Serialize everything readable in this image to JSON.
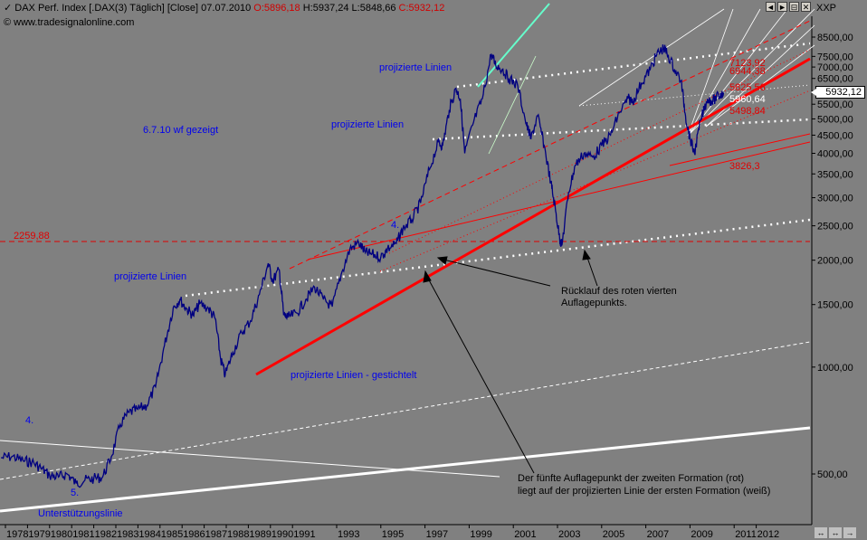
{
  "header": {
    "instrument": "DAX Perf. Index [.DAX(3)",
    "interval": "Täglich]",
    "mode": "[Close]",
    "date": "07.07.2010",
    "open": "O:5896,18",
    "high": "H:5937,24",
    "low": "L:5848,66",
    "close": "C:5932,12",
    "source": "www.tradesignalonline.com",
    "scale_label": "XXP",
    "current_price": "5932,12"
  },
  "window_controls": [
    "◄",
    "►",
    "⊟",
    "✕"
  ],
  "nav_controls": [
    "↔",
    "↔",
    "→"
  ],
  "annotations": {
    "proj1": "projizierte Linien",
    "proj2": "projizierte Linien",
    "proj3": "projizierte Linien",
    "proj_dashed": "projizierte Linien - gestichtelt",
    "shown": "6.7.10 wf gezeigt",
    "wave4_top": "4.",
    "wave4_left": "4.",
    "wave5_left": "5.",
    "support": "Unterstützungslinie",
    "retrace_1": "Rücklauf des roten vierten",
    "retrace_2": "Auflagepunkts.",
    "fifth_1": "Der fünfte Auflagepunkt der zweiten Formation (rot)",
    "fifth_2": "liegt auf der projizierten Linie der ersten Formation (weiß)",
    "level_2259": "2259,88",
    "level_3826": "3826,3",
    "level_5498": "5498,84",
    "level_5960": "5960,64",
    "level_5825": "5825,56",
    "level_6944": "6944,38",
    "level_7123": "7123,92"
  },
  "chart_data": {
    "type": "line",
    "title": "DAX Perf. Index",
    "y_scale": "log",
    "ylim": [
      330,
      9000
    ],
    "xlim": [
      1978,
      2013.4
    ],
    "y_ticks": [
      "8500,00",
      "7500,00",
      "7000,00",
      "6500,00",
      "6000,00",
      "5500,00",
      "5000,00",
      "4500,00",
      "4000,00",
      "3500,00",
      "3000,00",
      "2500,00",
      "2000,00",
      "1500,00",
      "1000,00",
      "500,00"
    ],
    "y_tick_values": [
      8500,
      7500,
      7000,
      6500,
      6000,
      5500,
      5000,
      4500,
      4000,
      3500,
      3000,
      2500,
      2000,
      1500,
      1000,
      500
    ],
    "x_ticks": [
      "1978",
      "1979",
      "1980",
      "1981",
      "1982",
      "1983",
      "1984",
      "1985",
      "1986",
      "1987",
      "1988",
      "1989",
      "1990",
      "1991",
      "1993",
      "1995",
      "1997",
      "1999",
      "2001",
      "2003",
      "2005",
      "2007",
      "2009",
      "2011",
      "2012"
    ],
    "x_tick_values": [
      1978,
      1979,
      1980,
      1981,
      1982,
      1983,
      1984,
      1985,
      1986,
      1987,
      1988,
      1989,
      1990,
      1991,
      1993,
      1995,
      1997,
      1999,
      2001,
      2003,
      2005,
      2007,
      2009,
      2011,
      2012
    ],
    "series": [
      {
        "name": "DAX",
        "color": "#000080",
        "x": [
          1977.8,
          1978.3,
          1978.8,
          1979.2,
          1979.6,
          1980.0,
          1980.4,
          1980.8,
          1981.2,
          1981.6,
          1982.0,
          1982.4,
          1982.8,
          1983.2,
          1983.6,
          1984.0,
          1984.4,
          1984.8,
          1985.2,
          1985.6,
          1985.9,
          1986.2,
          1986.5,
          1986.8,
          1987.2,
          1987.5,
          1987.75,
          1987.95,
          1988.3,
          1988.7,
          1989.1,
          1989.5,
          1989.9,
          1990.1,
          1990.4,
          1990.6,
          1990.8,
          1991.2,
          1991.6,
          1992.0,
          1992.4,
          1992.8,
          1993.2,
          1993.6,
          1994.0,
          1994.3,
          1994.6,
          1995.0,
          1995.3,
          1995.7,
          1996.0,
          1996.4,
          1996.8,
          1997.2,
          1997.6,
          1997.8,
          1998.1,
          1998.4,
          1998.6,
          1998.8,
          1999.2,
          1999.6,
          2000.0,
          2000.2,
          2000.5,
          2000.8,
          2001.2,
          2001.6,
          2001.8,
          2002.1,
          2002.4,
          2002.7,
          2002.9,
          2003.1,
          2003.2,
          2003.5,
          2003.8,
          2004.2,
          2004.6,
          2005.0,
          2005.4,
          2005.8,
          2006.2,
          2006.4,
          2006.8,
          2007.2,
          2007.5,
          2007.8,
          2007.95,
          2008.3,
          2008.6,
          2008.8,
          2009.0,
          2009.2,
          2009.5,
          2009.8,
          2010.0,
          2010.3,
          2010.52
        ],
        "y": [
          555,
          560,
          545,
          540,
          520,
          495,
          490,
          500,
          470,
          480,
          485,
          490,
          560,
          690,
          745,
          760,
          780,
          880,
          1150,
          1470,
          1550,
          1460,
          1400,
          1510,
          1460,
          1370,
          1050,
          950,
          1100,
          1250,
          1350,
          1600,
          1960,
          1750,
          1880,
          1400,
          1380,
          1420,
          1550,
          1680,
          1550,
          1480,
          1820,
          2150,
          2240,
          2100,
          2080,
          2040,
          2150,
          2230,
          2450,
          2600,
          2900,
          3600,
          4300,
          4200,
          5300,
          6100,
          5700,
          4000,
          4900,
          5700,
          7600,
          7100,
          6900,
          6500,
          6200,
          4800,
          4400,
          5100,
          4200,
          3300,
          2800,
          2300,
          2200,
          3100,
          3700,
          4000,
          3900,
          4200,
          4500,
          5200,
          5700,
          5600,
          6300,
          6900,
          7600,
          7900,
          7700,
          6900,
          6400,
          5100,
          4400,
          4000,
          5000,
          5700,
          5600,
          5800,
          5932
        ]
      }
    ]
  }
}
